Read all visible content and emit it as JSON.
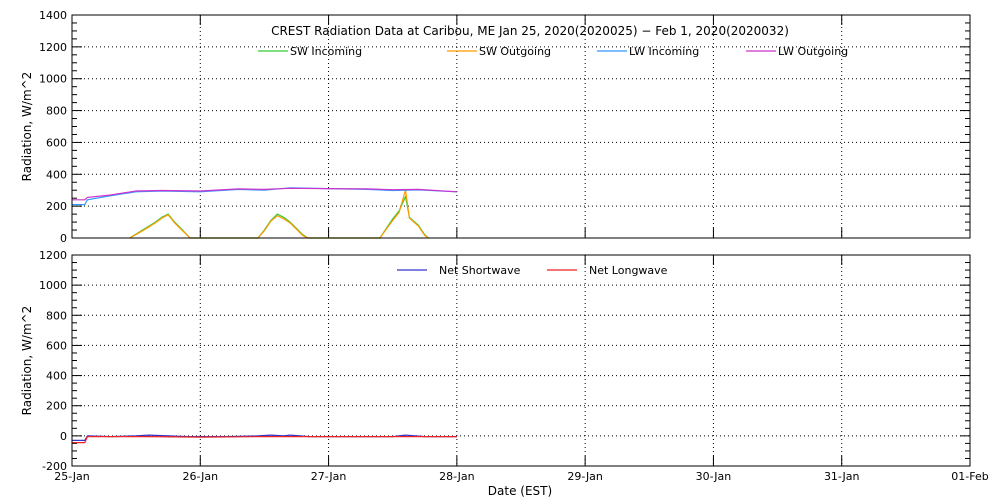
{
  "title": "CREST Radiation Data at Caribou, ME   Jan 25, 2020(2020025) − Feb  1, 2020(2020032)",
  "xlabel": "Date (EST)",
  "x_tick_labels": [
    "25-Jan",
    "26-Jan",
    "27-Jan",
    "28-Jan",
    "29-Jan",
    "30-Jan",
    "31-Jan",
    "01-Feb"
  ],
  "colors": {
    "sw_in": "#33cc33",
    "sw_out": "#ff9900",
    "lw_in": "#3399ff",
    "lw_out": "#cc33cc",
    "net_sw": "#3333cc",
    "net_lw": "#ee2222"
  },
  "chart_data": [
    {
      "type": "line",
      "ylabel": "Radiation, W/m^2",
      "ylim": [
        0,
        1400
      ],
      "yticks": [
        0,
        200,
        400,
        600,
        800,
        1000,
        1200,
        1400
      ],
      "xlim": [
        0,
        7
      ],
      "grid": true,
      "legend_position": "top",
      "series": [
        {
          "name": "SW Incoming",
          "color_key": "sw_in",
          "points": [
            [
              0.45,
              0
            ],
            [
              0.55,
              50
            ],
            [
              0.65,
              100
            ],
            [
              0.7,
              130
            ],
            [
              0.75,
              150
            ],
            [
              0.8,
              100
            ],
            [
              0.85,
              60
            ],
            [
              0.92,
              0
            ],
            [
              1.45,
              0
            ],
            [
              1.5,
              50
            ],
            [
              1.55,
              110
            ],
            [
              1.6,
              150
            ],
            [
              1.65,
              130
            ],
            [
              1.7,
              100
            ],
            [
              1.75,
              60
            ],
            [
              1.8,
              20
            ],
            [
              1.84,
              0
            ],
            [
              2.4,
              0
            ],
            [
              2.45,
              60
            ],
            [
              2.5,
              120
            ],
            [
              2.55,
              170
            ],
            [
              2.6,
              260
            ],
            [
              2.63,
              130
            ],
            [
              2.7,
              80
            ],
            [
              2.75,
              20
            ],
            [
              2.78,
              0
            ]
          ]
        },
        {
          "name": "SW Outgoing",
          "color_key": "sw_out",
          "points": [
            [
              0.45,
              0
            ],
            [
              0.55,
              45
            ],
            [
              0.65,
              95
            ],
            [
              0.7,
              125
            ],
            [
              0.75,
              145
            ],
            [
              0.8,
              95
            ],
            [
              0.85,
              55
            ],
            [
              0.92,
              0
            ],
            [
              1.45,
              0
            ],
            [
              1.5,
              45
            ],
            [
              1.55,
              105
            ],
            [
              1.6,
              140
            ],
            [
              1.65,
              120
            ],
            [
              1.7,
              95
            ],
            [
              1.75,
              55
            ],
            [
              1.8,
              15
            ],
            [
              1.84,
              0
            ],
            [
              2.4,
              0
            ],
            [
              2.45,
              55
            ],
            [
              2.5,
              110
            ],
            [
              2.55,
              160
            ],
            [
              2.6,
              300
            ],
            [
              2.63,
              125
            ],
            [
              2.7,
              75
            ],
            [
              2.75,
              15
            ],
            [
              2.78,
              0
            ]
          ]
        },
        {
          "name": "LW Incoming",
          "color_key": "lw_in",
          "points": [
            [
              0,
              210
            ],
            [
              0.1,
              210
            ],
            [
              0.12,
              240
            ],
            [
              0.3,
              265
            ],
            [
              0.5,
              290
            ],
            [
              0.7,
              295
            ],
            [
              1.0,
              290
            ],
            [
              1.3,
              305
            ],
            [
              1.5,
              300
            ],
            [
              1.7,
              315
            ],
            [
              2.0,
              310
            ],
            [
              2.3,
              305
            ],
            [
              2.5,
              298
            ],
            [
              2.7,
              302
            ],
            [
              3.0,
              290
            ]
          ]
        },
        {
          "name": "LW Outgoing",
          "color_key": "lw_out",
          "points": [
            [
              0,
              240
            ],
            [
              0.1,
              240
            ],
            [
              0.12,
              255
            ],
            [
              0.3,
              270
            ],
            [
              0.5,
              295
            ],
            [
              0.7,
              298
            ],
            [
              1.0,
              295
            ],
            [
              1.3,
              308
            ],
            [
              1.5,
              305
            ],
            [
              1.7,
              312
            ],
            [
              2.0,
              310
            ],
            [
              2.3,
              308
            ],
            [
              2.5,
              303
            ],
            [
              2.7,
              305
            ],
            [
              3.0,
              290
            ]
          ]
        }
      ]
    },
    {
      "type": "line",
      "ylabel": "Radiation, W/m^2",
      "ylim": [
        -200,
        1200
      ],
      "yticks": [
        -200,
        0,
        200,
        400,
        600,
        800,
        1000,
        1200
      ],
      "xlim": [
        0,
        7
      ],
      "grid": true,
      "legend_position": "top",
      "series": [
        {
          "name": "Net Shortwave",
          "color_key": "net_sw",
          "points": [
            [
              0,
              -30
            ],
            [
              0.1,
              -30
            ],
            [
              0.12,
              0
            ],
            [
              0.3,
              -5
            ],
            [
              0.5,
              0
            ],
            [
              0.6,
              5
            ],
            [
              0.75,
              0
            ],
            [
              0.9,
              -5
            ],
            [
              1.2,
              -5
            ],
            [
              1.45,
              0
            ],
            [
              1.55,
              5
            ],
            [
              1.65,
              0
            ],
            [
              1.7,
              5
            ],
            [
              1.85,
              -5
            ],
            [
              2.0,
              -5
            ],
            [
              2.5,
              -5
            ],
            [
              2.6,
              5
            ],
            [
              2.75,
              -5
            ],
            [
              3.0,
              -5
            ]
          ]
        },
        {
          "name": "Net Longwave",
          "color_key": "net_lw",
          "points": [
            [
              0,
              -45
            ],
            [
              0.1,
              -45
            ],
            [
              0.12,
              -5
            ],
            [
              0.3,
              -5
            ],
            [
              0.6,
              -5
            ],
            [
              1.0,
              -8
            ],
            [
              1.5,
              -5
            ],
            [
              2.0,
              -5
            ],
            [
              2.5,
              -5
            ],
            [
              3.0,
              -5
            ]
          ]
        }
      ]
    }
  ]
}
